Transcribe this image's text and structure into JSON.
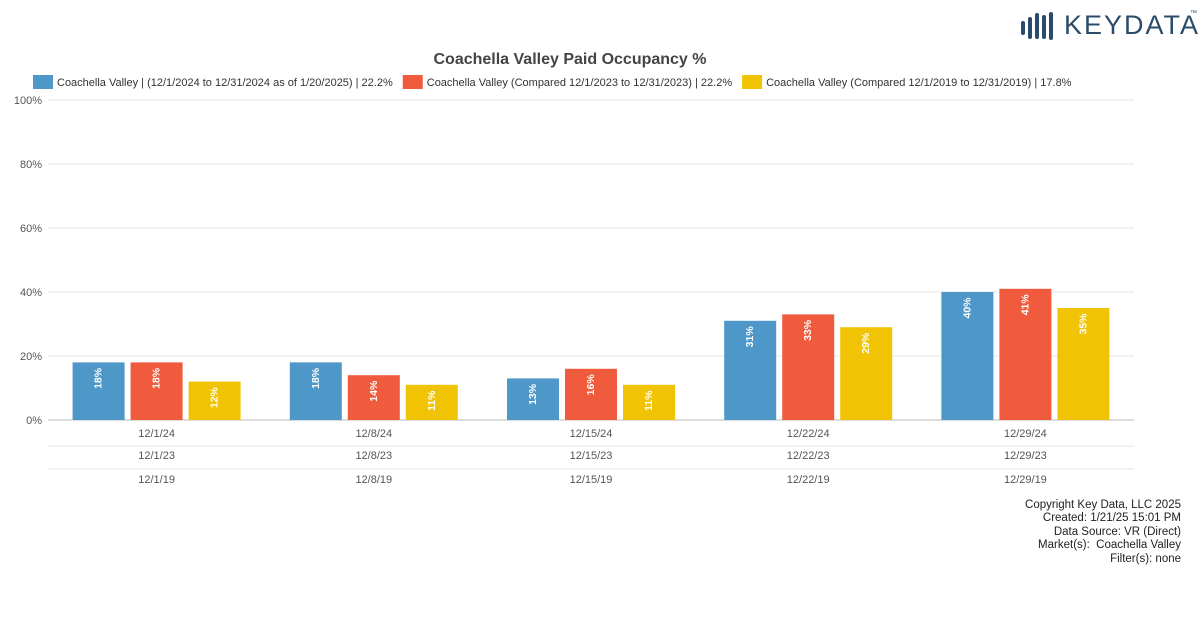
{
  "logo": {
    "text": "KEYDATA",
    "tm": "™"
  },
  "chart_data": {
    "type": "bar",
    "title": "Coachella Valley Paid Occupancy %",
    "categories": [
      "12/1/24",
      "12/8/24",
      "12/15/24",
      "12/22/24",
      "12/29/24"
    ],
    "secondary_categories": [
      "12/1/23",
      "12/8/23",
      "12/15/23",
      "12/22/23",
      "12/29/23"
    ],
    "tertiary_categories": [
      "12/1/19",
      "12/8/19",
      "12/15/19",
      "12/22/19",
      "12/29/19"
    ],
    "series": [
      {
        "name": "Coachella Valley | (12/1/2024 to 12/31/2024 as of 1/20/2025) | 22.2%",
        "color": "#4e97c9",
        "values": [
          18,
          18,
          13,
          31,
          40
        ]
      },
      {
        "name": "Coachella Valley (Compared 12/1/2023 to 12/31/2023) | 22.2%",
        "color": "#ef5b3c",
        "values": [
          18,
          14,
          16,
          33,
          41
        ]
      },
      {
        "name": "Coachella Valley (Compared 12/1/2019 to 12/31/2019) | 17.8%",
        "color": "#f0c405",
        "values": [
          12,
          11,
          11,
          29,
          35
        ]
      }
    ],
    "data_labels": [
      [
        "18%",
        "18%",
        "13%",
        "31%",
        "40%"
      ],
      [
        "18%",
        "14%",
        "16%",
        "33%",
        "41%"
      ],
      [
        "12%",
        "11%",
        "11%",
        "29%",
        "35%"
      ]
    ],
    "yticks": [
      "0%",
      "20%",
      "40%",
      "60%",
      "80%",
      "100%"
    ],
    "ylim": [
      0,
      100
    ],
    "grid": true,
    "legend_position": "top"
  },
  "footer": {
    "lines": [
      "Copyright Key Data, LLC 2025",
      "Created: 1/21/25 15:01 PM",
      "Data Source: VR (Direct)",
      "Market(s):  Coachella Valley",
      "Filter(s): none"
    ]
  }
}
